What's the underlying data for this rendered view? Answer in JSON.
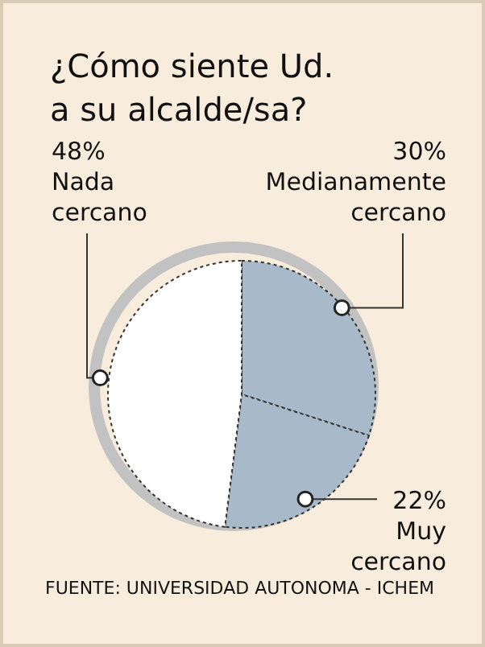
{
  "chart_data": {
    "type": "pie",
    "title": "¿Cómo siente Ud.\na su alcalde/sa?",
    "categories": [
      "Medianamente cercano",
      "Muy cercano",
      "Nada cercano"
    ],
    "values": [
      30,
      22,
      48
    ],
    "colors": [
      "#a8bac9",
      "#a8bac9",
      "#ffffff"
    ],
    "value_labels": [
      "30%",
      "22%",
      "48%"
    ],
    "annotations": [
      "FUENTE: UNIVERSIDAD AUTONOMA - ICHEM"
    ]
  }
}
